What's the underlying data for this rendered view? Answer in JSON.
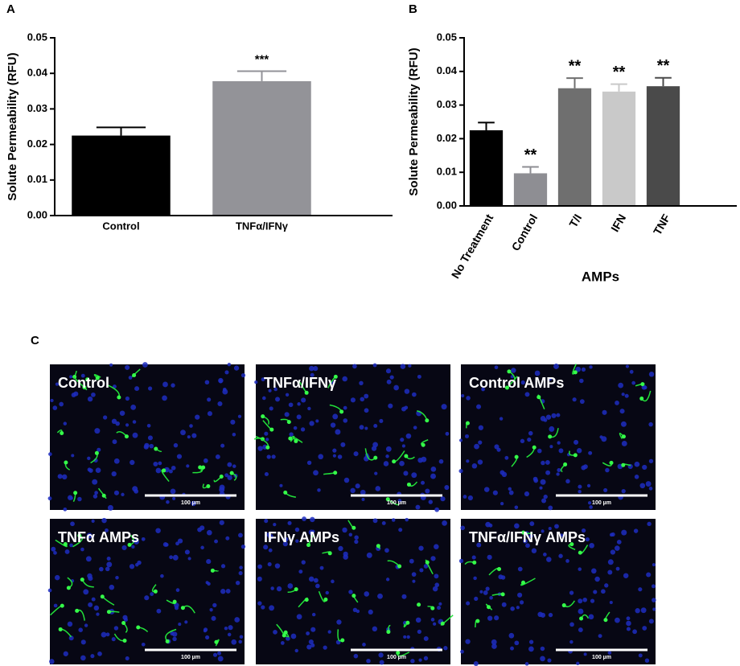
{
  "chart_data": [
    {
      "type": "bar",
      "panel_label": "A",
      "ylabel": "Solute Permeability (RFU)",
      "categories": [
        "Control",
        "TNFα/IFNγ"
      ],
      "values": [
        0.0225,
        0.0378
      ],
      "errors": [
        0.0023,
        0.0028
      ],
      "colors": [
        "#000000",
        "#939398"
      ],
      "significance": [
        null,
        "***"
      ],
      "ylim": [
        0,
        0.05
      ],
      "yticks": [
        {
          "value": 0,
          "label": "0.00"
        },
        {
          "value": 0.01,
          "label": "0.01"
        },
        {
          "value": 0.02,
          "label": "0.02"
        },
        {
          "value": 0.03,
          "label": "0.03"
        },
        {
          "value": 0.04,
          "label": "0.04"
        },
        {
          "value": 0.05,
          "label": "0.05"
        }
      ]
    },
    {
      "type": "bar",
      "panel_label": "B",
      "ylabel": "Solute Permeability (RFU)",
      "xlabel": "AMPs",
      "categories": [
        "No Treatment",
        "Control",
        "T/I",
        "IFN",
        "TNF"
      ],
      "values": [
        0.0225,
        0.0097,
        0.035,
        0.034,
        0.0356
      ],
      "errors": [
        0.0023,
        0.0019,
        0.003,
        0.0022,
        0.0025
      ],
      "colors": [
        "#000000",
        "#8e8e93",
        "#6f6f6f",
        "#c9c9c9",
        "#4a4a4a"
      ],
      "significance": [
        null,
        "**",
        "**",
        "**",
        "**"
      ],
      "ylim": [
        0,
        0.05
      ],
      "yticks": [
        {
          "value": 0,
          "label": "0.00"
        },
        {
          "value": 0.01,
          "label": "0.01"
        },
        {
          "value": 0.02,
          "label": "0.02"
        },
        {
          "value": 0.03,
          "label": "0.03"
        },
        {
          "value": 0.04,
          "label": "0.04"
        },
        {
          "value": 0.05,
          "label": "0.05"
        }
      ]
    }
  ],
  "panel_c": {
    "panel_label": "C",
    "images": [
      {
        "label": "Control",
        "scale_bar": "100 µm"
      },
      {
        "label": "TNFα/IFNγ",
        "scale_bar": "100 µm"
      },
      {
        "label": "Control AMPs",
        "scale_bar": "100 µm"
      },
      {
        "label": "TNFα AMPs",
        "scale_bar": "100 µm"
      },
      {
        "label": "IFNγ AMPs",
        "scale_bar": "100 µm"
      },
      {
        "label": "TNFα/IFNγ AMPs",
        "scale_bar": "100 µm"
      }
    ]
  }
}
